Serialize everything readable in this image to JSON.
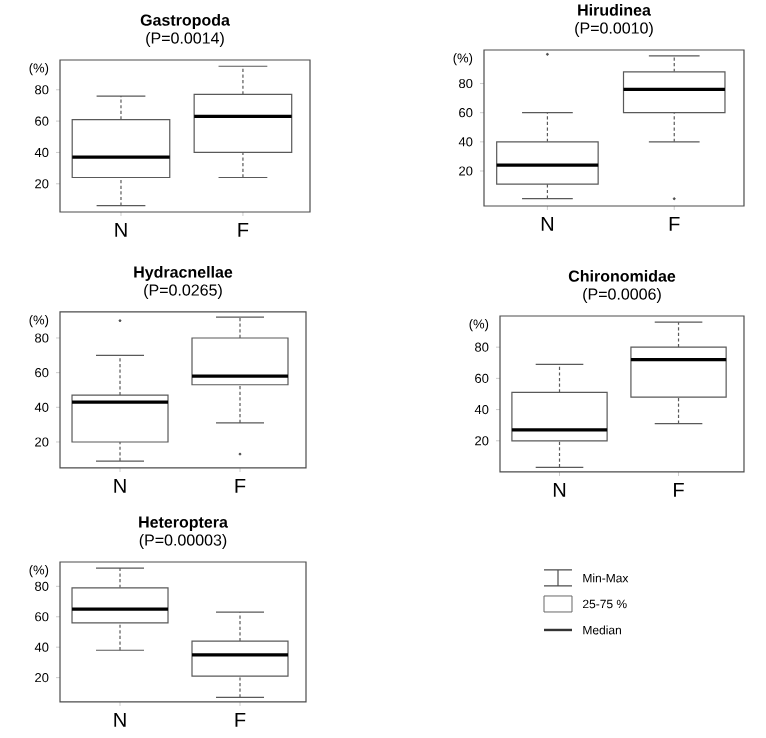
{
  "chart_data": [
    {
      "type": "box",
      "title": "Gastropoda",
      "subtitle": "(P=0.0014)",
      "ylabel": "(%)",
      "categories": [
        "N",
        "F"
      ],
      "ylim": [
        2,
        99
      ],
      "yticks": [
        20,
        40,
        60,
        80
      ],
      "boxes": [
        {
          "low": 6,
          "q1": 24,
          "median": 37,
          "q3": 61,
          "high": 76
        },
        {
          "low": 24,
          "q1": 40,
          "median": 63,
          "q3": 77,
          "high": 95
        }
      ]
    },
    {
      "type": "box",
      "title": "Hirudinea",
      "subtitle": "(P=0.0010)",
      "ylabel": "(%)",
      "categories": [
        "N",
        "F"
      ],
      "ylim": [
        -4,
        103
      ],
      "yticks": [
        20,
        40,
        60,
        80
      ],
      "boxes": [
        {
          "low": 1,
          "q1": 11,
          "median": 24,
          "q3": 40,
          "high": 60,
          "outliers": [
            100
          ]
        },
        {
          "low": 40,
          "q1": 60,
          "median": 76,
          "q3": 88,
          "high": 99,
          "outliers": [
            1
          ]
        }
      ]
    },
    {
      "type": "box",
      "title": "Hydracnellae",
      "subtitle": "(P=0.0265)",
      "ylabel": "(%)",
      "categories": [
        "N",
        "F"
      ],
      "ylim": [
        5,
        95
      ],
      "yticks": [
        20,
        40,
        60,
        80
      ],
      "boxes": [
        {
          "low": 9,
          "q1": 20,
          "median": 43,
          "q3": 47,
          "high": 70,
          "outliers": [
            90
          ]
        },
        {
          "low": 31,
          "q1": 53,
          "median": 58,
          "q3": 80,
          "high": 92,
          "outliers": [
            13
          ]
        }
      ]
    },
    {
      "type": "box",
      "title": "Chironomidae",
      "subtitle": "(P=0.0006)",
      "ylabel": "(%)",
      "categories": [
        "N",
        "F"
      ],
      "ylim": [
        0,
        100
      ],
      "yticks": [
        20,
        40,
        60,
        80
      ],
      "boxes": [
        {
          "low": 3,
          "q1": 20,
          "median": 27,
          "q3": 51,
          "high": 69
        },
        {
          "low": 31,
          "q1": 48,
          "median": 72,
          "q3": 80,
          "high": 96
        }
      ]
    },
    {
      "type": "box",
      "title": "Heteroptera",
      "subtitle": "(P=0.00003)",
      "ylabel": "(%)",
      "categories": [
        "N",
        "F"
      ],
      "ylim": [
        4,
        96
      ],
      "yticks": [
        20,
        40,
        60,
        80
      ],
      "boxes": [
        {
          "low": 38,
          "q1": 56,
          "median": 65,
          "q3": 79,
          "high": 92
        },
        {
          "low": 7,
          "q1": 21,
          "median": 35,
          "q3": 44,
          "high": 63
        }
      ]
    },
    {
      "type": "other",
      "annotations": [
        "Min-Max",
        "25-75 %",
        "Median"
      ]
    }
  ]
}
